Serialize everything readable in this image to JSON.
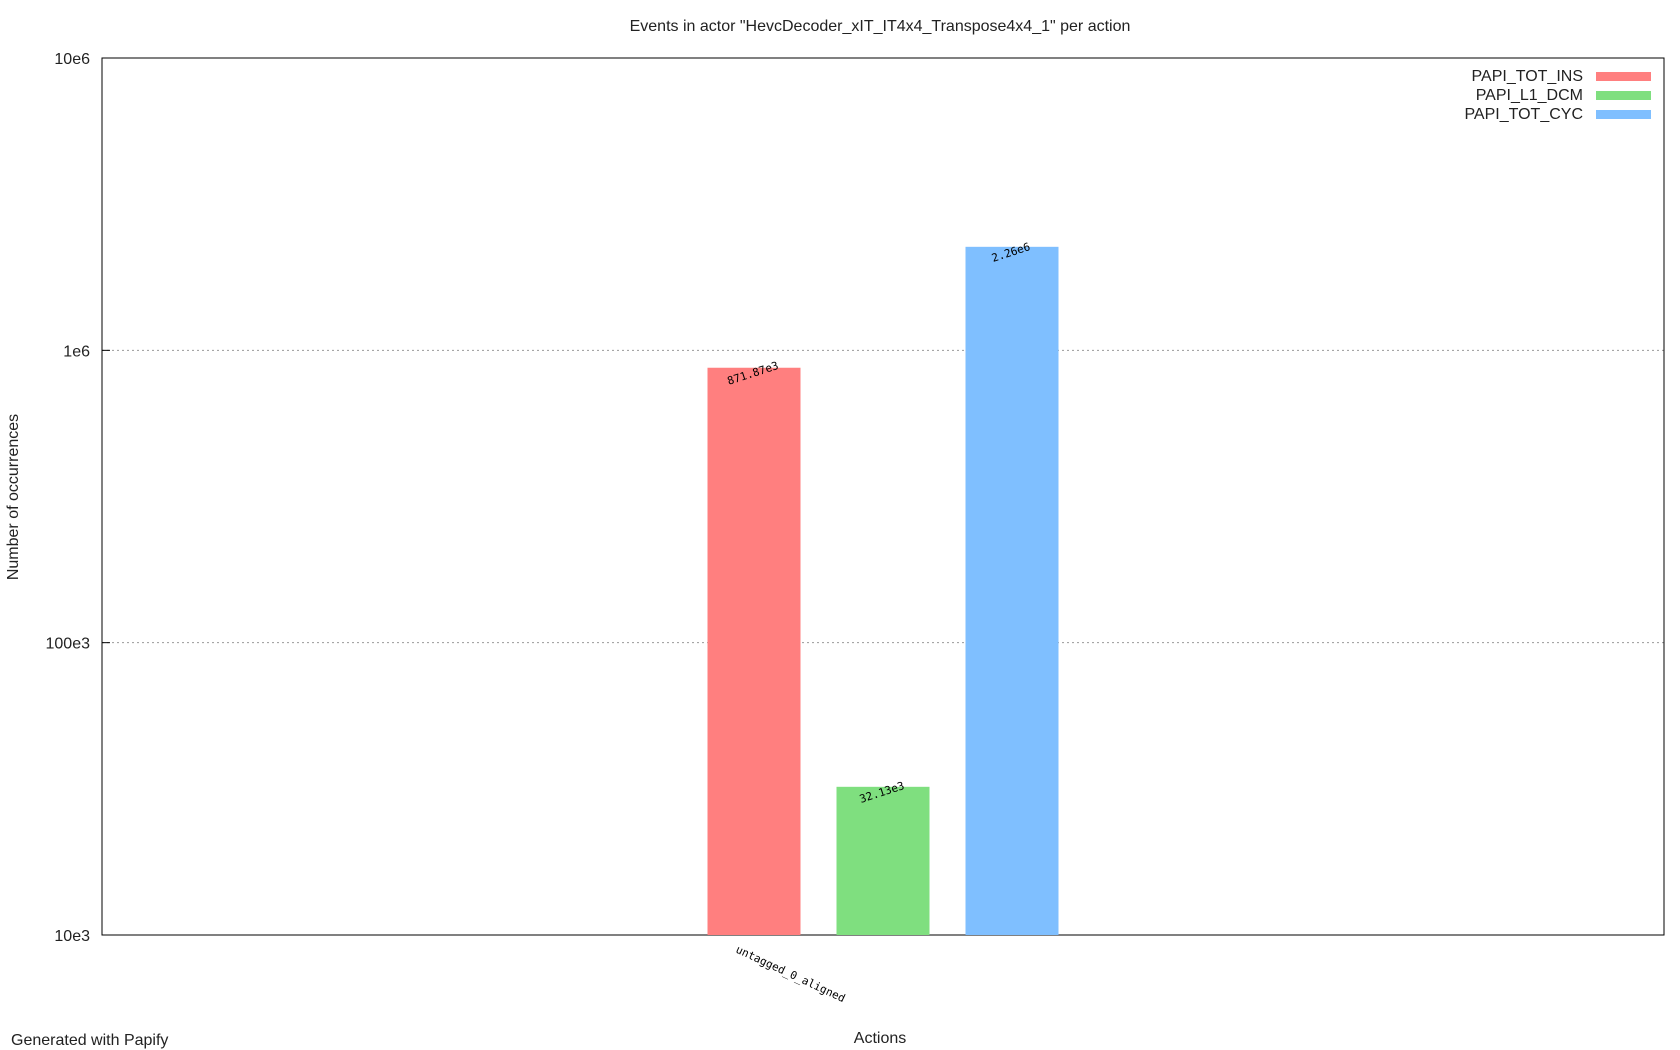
{
  "chart_data": {
    "type": "bar",
    "title": "Events in actor \"HevcDecoder_xIT_IT4x4_Transpose4x4_1\" per action",
    "xlabel": "Actions",
    "ylabel": "Number of occurrences",
    "yscale": "log",
    "ylim": [
      10000,
      10000000
    ],
    "yticks": [
      {
        "value": 10000,
        "label": "10e3"
      },
      {
        "value": 100000,
        "label": "100e3"
      },
      {
        "value": 1000000,
        "label": "1e6"
      },
      {
        "value": 10000000,
        "label": "10e6"
      }
    ],
    "grid": true,
    "legend_position": "top-right",
    "categories": [
      "untagged_0_aligned"
    ],
    "series": [
      {
        "name": "PAPI_TOT_INS",
        "color": "#ff7f7f",
        "values": [
          871870
        ],
        "labels": [
          "871.87e3"
        ]
      },
      {
        "name": "PAPI_L1_DCM",
        "color": "#7fdf7f",
        "values": [
          32130
        ],
        "labels": [
          "32.13e3"
        ]
      },
      {
        "name": "PAPI_TOT_CYC",
        "color": "#7fbfff",
        "values": [
          2260000
        ],
        "labels": [
          "2.26e6"
        ]
      }
    ]
  },
  "footer": "Generated with Papify"
}
